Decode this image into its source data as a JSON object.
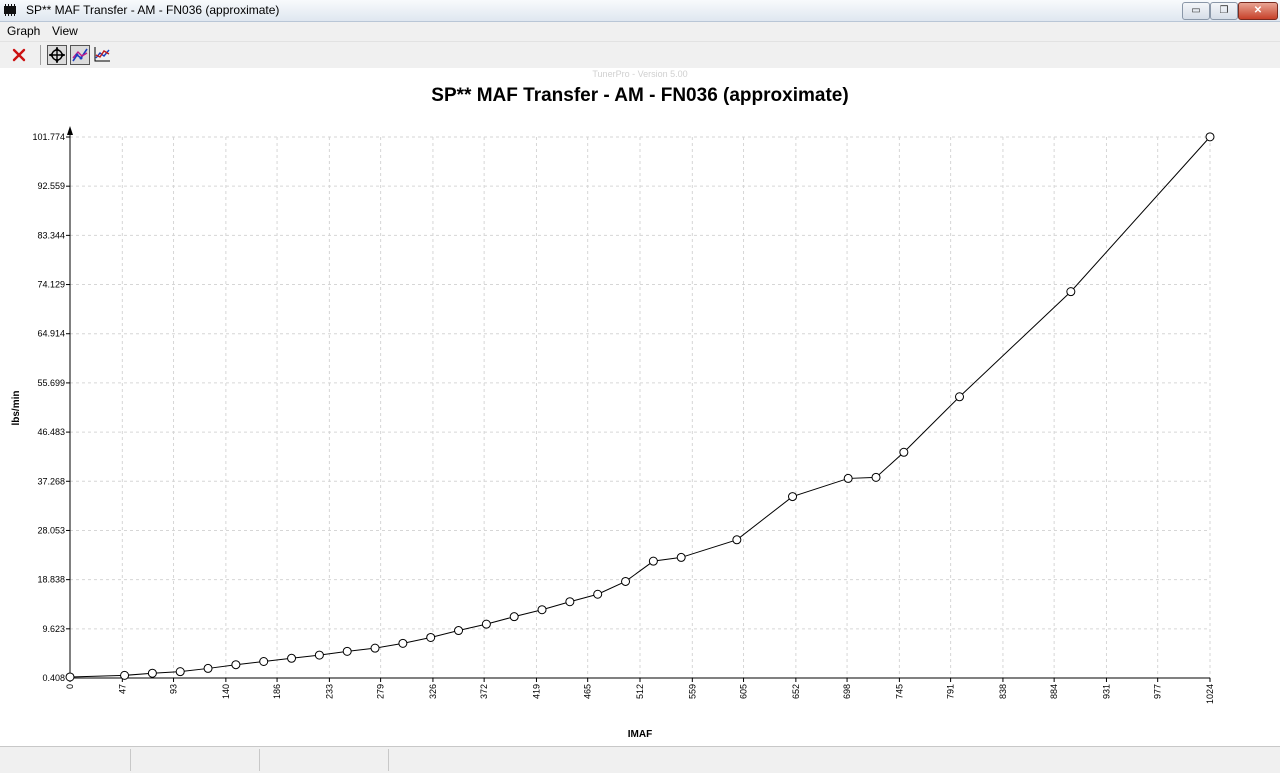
{
  "window": {
    "title": "SP** MAF Transfer - AM - FN036 (approximate)"
  },
  "window_controls": {
    "minimize": "▭",
    "maximize": "❐",
    "close": "✕"
  },
  "menu": [
    "Graph",
    "View"
  ],
  "toolbar": [
    {
      "name": "close-graph-button",
      "icon": "red-x-icon",
      "active": false
    },
    {
      "name": "pan-tool-button",
      "icon": "crosshair-move-icon",
      "active": true
    },
    {
      "name": "line-graph-button",
      "icon": "line-graph-icon",
      "active": true
    },
    {
      "name": "multi-graph-button",
      "icon": "multi-line-graph-icon",
      "active": false
    }
  ],
  "watermark": "TunerPro - Version 5.00",
  "colors": {
    "line": "#000000",
    "grid": "#d6d6d6",
    "close_icon": "#cc1111"
  },
  "chart_data": {
    "type": "line",
    "title": "SP** MAF Transfer - AM - FN036 (approximate)",
    "xlabel": "IMAF",
    "ylabel": "lbs/min",
    "xlim": [
      0,
      1024
    ],
    "ylim": [
      0.408,
      101.774
    ],
    "x_ticks": [
      "0",
      "47",
      "93",
      "140",
      "186",
      "233",
      "279",
      "326",
      "372",
      "419",
      "465",
      "512",
      "559",
      "605",
      "652",
      "698",
      "745",
      "791",
      "838",
      "884",
      "931",
      "977",
      "1024"
    ],
    "y_ticks": [
      "0.408",
      "9.623",
      "18.838",
      "28.053",
      "37.268",
      "46.483",
      "55.699",
      "64.914",
      "74.129",
      "83.344",
      "92.559",
      "101.774"
    ],
    "grid": true,
    "series": [
      {
        "x": [
          0,
          49,
          74,
          99,
          124,
          149,
          174,
          199,
          224,
          249,
          274,
          299,
          324,
          349,
          374,
          399,
          424,
          449,
          474,
          499,
          524,
          549,
          599,
          649,
          699,
          724,
          749,
          799,
          899,
          1024
        ],
        "y": [
          0.6,
          0.9,
          1.3,
          1.6,
          2.2,
          2.9,
          3.5,
          4.1,
          4.7,
          5.4,
          6.0,
          6.9,
          8.0,
          9.3,
          10.5,
          11.9,
          13.2,
          14.7,
          16.1,
          18.5,
          22.3,
          23.0,
          26.3,
          34.4,
          37.8,
          38.0,
          42.7,
          53.1,
          72.8,
          101.8
        ]
      }
    ]
  }
}
